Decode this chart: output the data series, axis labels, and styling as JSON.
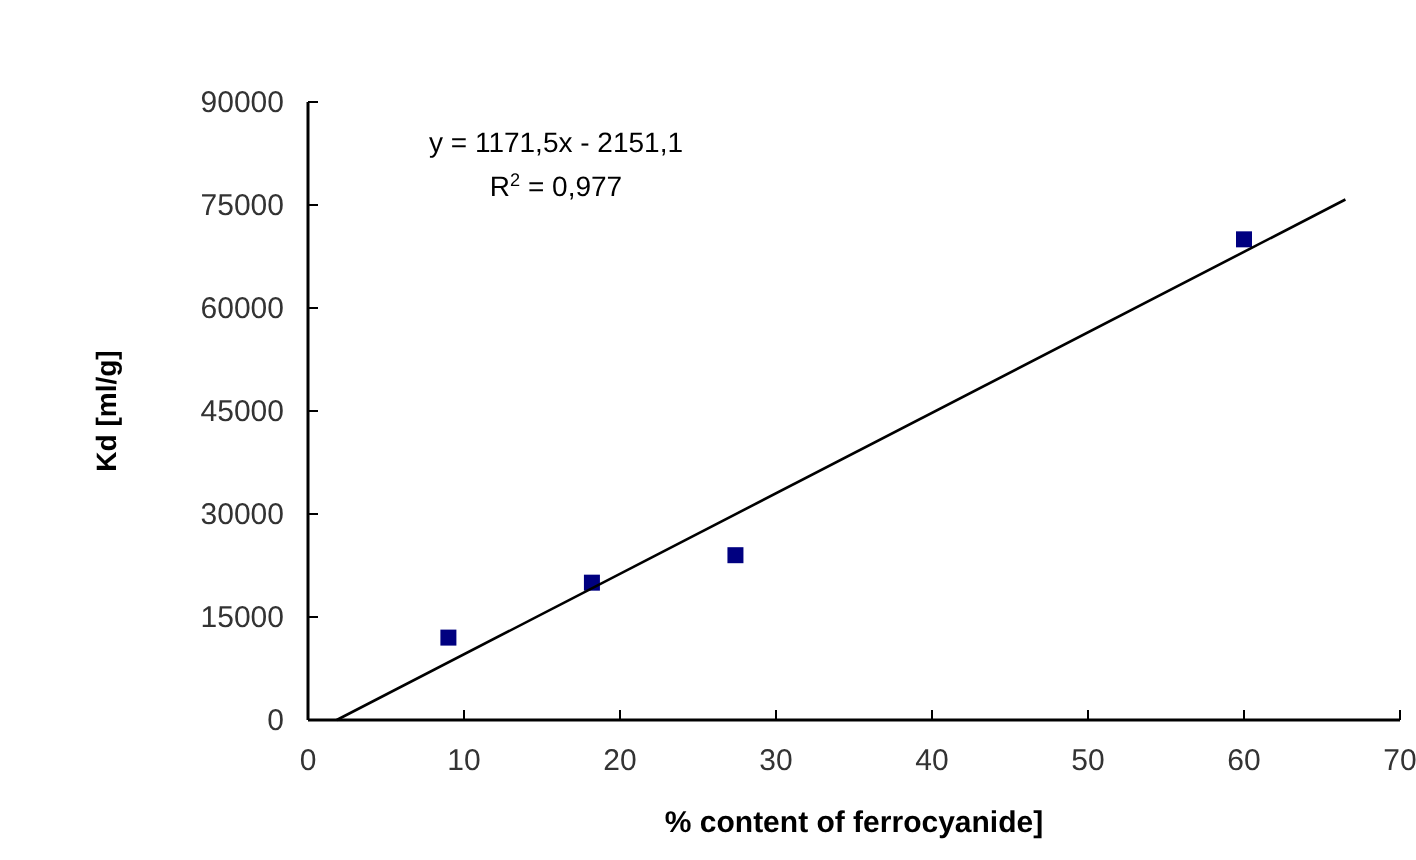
{
  "chart_data": {
    "type": "scatter",
    "xlabel": "% content of ferrocyanide]",
    "ylabel": "Kd [ml/g]",
    "annotations": [
      "y = 1171,5x - 2151,1",
      "R$^{2}$ = 0,977"
    ],
    "series": [
      {
        "color": "#000080",
        "marker": "square",
        "x": [
          9,
          18.2,
          27.4,
          60
        ],
        "values": [
          12000,
          20000,
          24000,
          70000
        ]
      },
      {
        "type": "line",
        "color": "#000000",
        "marker": "none",
        "line_style": "solid",
        "x": [
          1.84,
          66.5
        ],
        "values": [
          0,
          75800
        ]
      }
    ],
    "xlim": [
      0,
      70
    ],
    "xticks": [
      0,
      10,
      20,
      30,
      40,
      50,
      60,
      70
    ],
    "ylim": [
      0,
      90000
    ],
    "yticks": [
      0,
      15000,
      30000,
      45000,
      60000,
      75000,
      90000
    ],
    "grid": false
  }
}
